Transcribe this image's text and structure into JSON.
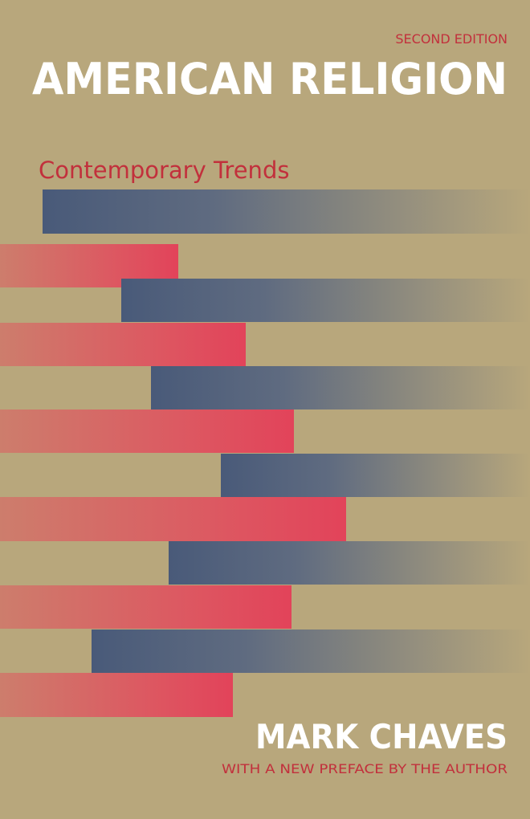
{
  "cover": {
    "edition": "SECOND EDITION",
    "title": "AMERICAN RELIGION",
    "subtitle": "Contemporary Trends",
    "author": "MARK CHAVES",
    "note": "WITH A NEW PREFACE BY THE AUTHOR"
  }
}
